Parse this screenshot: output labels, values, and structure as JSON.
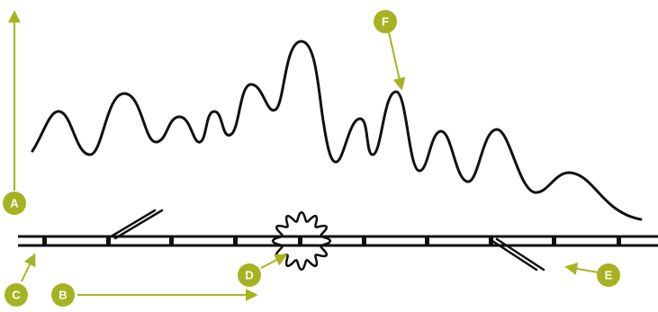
{
  "colors": {
    "accent": "#a6b321",
    "ink": "#111111",
    "background": "#ffffff",
    "label_text": "#ffffff"
  },
  "labels": {
    "a": "A",
    "b": "B",
    "c": "C",
    "d": "D",
    "e": "E",
    "f": "F"
  }
}
